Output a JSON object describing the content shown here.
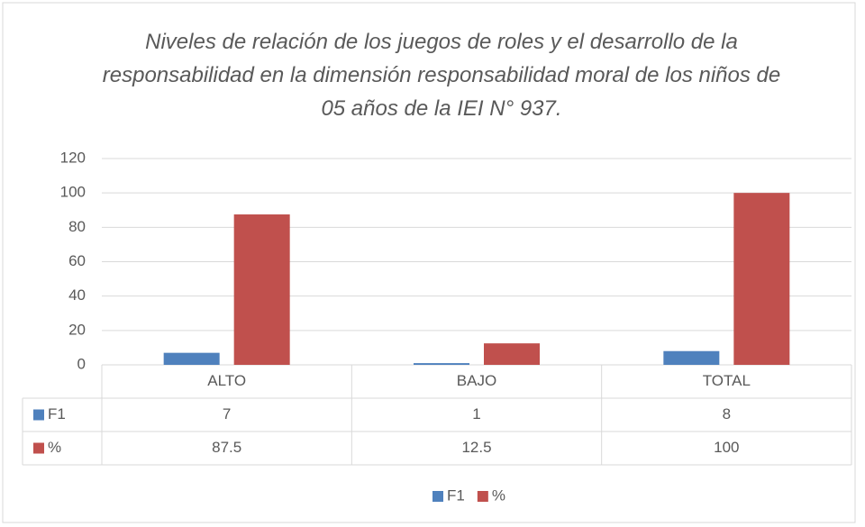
{
  "chart_data": {
    "type": "bar",
    "title": "Niveles de relación de los juegos de roles y el desarrollo de la responsabilidad en la dimensión responsabilidad moral de los niños de 05 años de la IEI N° 937.",
    "categories": [
      "ALTO",
      "BAJO",
      "TOTAL"
    ],
    "series": [
      {
        "name": "F1",
        "color": "#4f81bd",
        "values": [
          7,
          1,
          8
        ]
      },
      {
        "name": "%",
        "color": "#c0504d",
        "values": [
          87.5,
          12.5,
          100
        ]
      }
    ],
    "ylim": [
      0,
      120
    ],
    "yticks": [
      0,
      20,
      40,
      60,
      80,
      100,
      120
    ],
    "grid": true,
    "legend": "bottom"
  }
}
